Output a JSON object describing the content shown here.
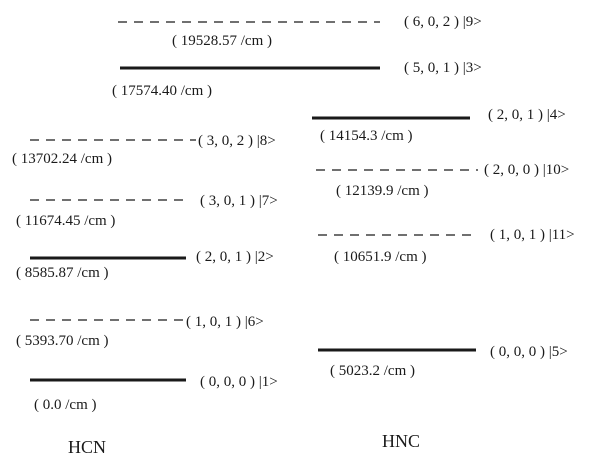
{
  "molecules": [
    {
      "id": "hcn",
      "label": "HCN"
    },
    {
      "id": "hnc",
      "label": "HNC"
    }
  ],
  "levels": [
    {
      "id": "hcn-1",
      "molecule": "hcn",
      "energy": "( 0.0 /cm )",
      "state": "( 0, 0, 0 ) |1>",
      "style": "solid"
    },
    {
      "id": "hcn-6",
      "molecule": "hcn",
      "energy": "( 5393.70 /cm )",
      "state": "( 1, 0, 1 ) |6>",
      "style": "dashed"
    },
    {
      "id": "hcn-2",
      "molecule": "hcn",
      "energy": "( 8585.87 /cm )",
      "state": "( 2, 0, 1 ) |2>",
      "style": "solid"
    },
    {
      "id": "hcn-7",
      "molecule": "hcn",
      "energy": "( 11674.45 /cm )",
      "state": "( 3, 0, 1 ) |7>",
      "style": "dashed"
    },
    {
      "id": "hcn-8",
      "molecule": "hcn",
      "energy": "( 13702.24 /cm )",
      "state": "( 3, 0, 2 ) |8>",
      "style": "dashed"
    },
    {
      "id": "hcn-3",
      "molecule": "hcn",
      "energy": "( 17574.40 /cm )",
      "state": "( 5, 0, 1 ) |3>",
      "style": "solid"
    },
    {
      "id": "hcn-9",
      "molecule": "hcn",
      "energy": "( 19528.57 /cm )",
      "state": "( 6, 0, 2 ) |9>",
      "style": "dashed"
    },
    {
      "id": "hnc-5",
      "molecule": "hnc",
      "energy": "( 5023.2 /cm )",
      "state": "( 0, 0, 0 ) |5>",
      "style": "solid"
    },
    {
      "id": "hnc-11",
      "molecule": "hnc",
      "energy": "( 10651.9 /cm )",
      "state": "( 1, 0, 1 ) |11>",
      "style": "dashed"
    },
    {
      "id": "hnc-10",
      "molecule": "hnc",
      "energy": "( 12139.9 /cm )",
      "state": "( 2, 0, 0 ) |10>",
      "style": "dashed"
    },
    {
      "id": "hnc-4",
      "molecule": "hnc",
      "energy": "( 14154.3 /cm )",
      "state": "( 2, 0, 1 ) |4>",
      "style": "solid"
    }
  ]
}
